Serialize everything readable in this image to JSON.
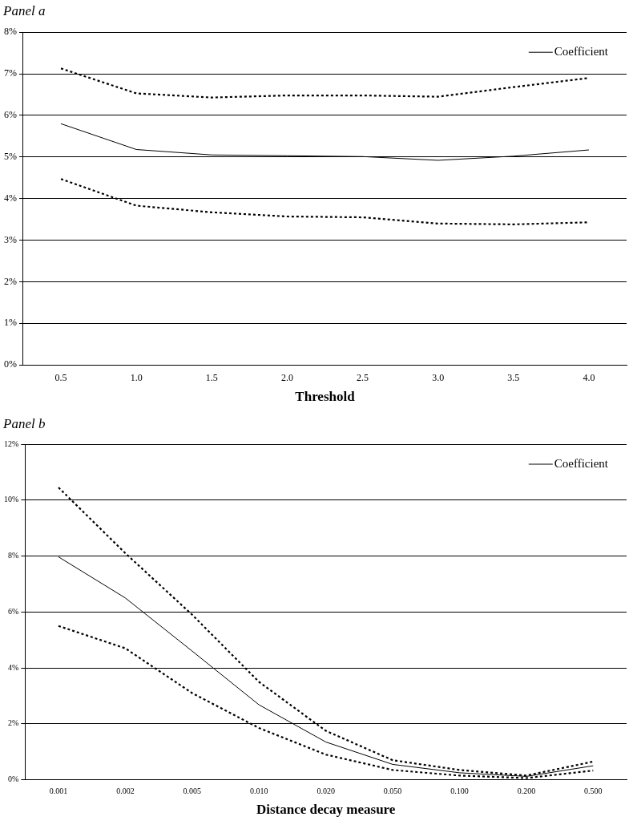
{
  "chart_data": [
    {
      "type": "line",
      "title": "Panel a",
      "xlabel": "Threshold",
      "categories": [
        "0.5",
        "1.0",
        "1.5",
        "2.0",
        "2.5",
        "3.0",
        "3.5",
        "4.0"
      ],
      "series": [
        {
          "name": "Coefficient",
          "color": "#000000",
          "line_style": "solid",
          "values": [
            5.8,
            5.18,
            5.05,
            5.03,
            5.01,
            4.92,
            5.02,
            5.17
          ]
        },
        {
          "color": "#000000",
          "line_style": "dotted",
          "values": [
            7.13,
            6.53,
            6.43,
            6.48,
            6.48,
            6.45,
            6.68,
            6.9
          ]
        },
        {
          "color": "#000000",
          "line_style": "dotted",
          "values": [
            4.47,
            3.83,
            3.67,
            3.57,
            3.55,
            3.4,
            3.38,
            3.43
          ]
        }
      ],
      "ylim": [
        0,
        8
      ],
      "yticks": [
        {
          "value": 0,
          "label": "0%"
        },
        {
          "value": 1,
          "label": "1%"
        },
        {
          "value": 2,
          "label": "2%"
        },
        {
          "value": 3,
          "label": "3%"
        },
        {
          "value": 4,
          "label": "4%"
        },
        {
          "value": 5,
          "label": "5%"
        },
        {
          "value": 6,
          "label": "6%"
        },
        {
          "value": 7,
          "label": "7%"
        },
        {
          "value": 8,
          "label": "8%"
        }
      ],
      "grid": "y",
      "legend": "top right",
      "marker": "none"
    },
    {
      "type": "line",
      "title": "Panel b",
      "xlabel": "Distance decay measure",
      "categories": [
        "0.001",
        "0.002",
        "0.005",
        "0.010",
        "0.020",
        "0.050",
        "0.100",
        "0.200",
        "0.500"
      ],
      "series": [
        {
          "name": "Coefficient",
          "color": "#000000",
          "line_style": "solid",
          "values": [
            7.97,
            6.5,
            4.6,
            2.68,
            1.35,
            0.55,
            0.25,
            0.12,
            0.5
          ]
        },
        {
          "color": "#000000",
          "line_style": "dotted",
          "values": [
            10.45,
            8.1,
            5.9,
            3.5,
            1.75,
            0.7,
            0.35,
            0.15,
            0.65
          ]
        },
        {
          "color": "#000000",
          "line_style": "dotted",
          "values": [
            5.5,
            4.7,
            3.1,
            1.85,
            0.9,
            0.35,
            0.15,
            0.06,
            0.33
          ]
        }
      ],
      "ylim": [
        0,
        12
      ],
      "yticks": [
        {
          "value": 0,
          "label": "0%"
        },
        {
          "value": 2,
          "label": "2%"
        },
        {
          "value": 4,
          "label": "4%"
        },
        {
          "value": 6,
          "label": "6%"
        },
        {
          "value": 8,
          "label": "8%"
        },
        {
          "value": 10,
          "label": "10%"
        },
        {
          "value": 12,
          "label": "12%"
        }
      ],
      "grid": "y",
      "legend": "top right",
      "marker": "none"
    }
  ]
}
